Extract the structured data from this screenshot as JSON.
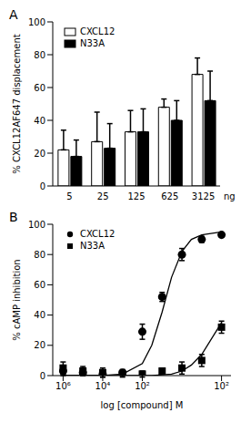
{
  "chart_data": [
    {
      "type": "bar",
      "title": "A",
      "ylabel": "% CXCL12AF647 displacement",
      "xlabel": "ng",
      "categories": [
        "5",
        "25",
        "125",
        "625",
        "3125"
      ],
      "series": [
        {
          "name": "CXCL12",
          "color": "#ffffff",
          "values": [
            22,
            27,
            33,
            48,
            68
          ],
          "errors": [
            12,
            18,
            13,
            5,
            10
          ]
        },
        {
          "name": "N33A",
          "color": "#000000",
          "values": [
            18,
            23,
            33,
            40,
            52
          ],
          "errors": [
            10,
            15,
            14,
            12,
            18
          ]
        }
      ],
      "ylim": [
        0,
        100
      ],
      "yticks": [
        0,
        20,
        40,
        60,
        80,
        100
      ],
      "legend": "top-left",
      "grid": false
    },
    {
      "type": "scatter",
      "title": "B",
      "ylabel": "% cAMP inhibition",
      "xlabel": "log [compound] M",
      "log": "x",
      "series": [
        {
          "name": "CXCL12",
          "color": "#000000",
          "marker": "circle",
          "x": [
            1e-06,
            1e-05,
            0.0001,
            0.001,
            0.01,
            0.1,
            1,
            10,
            100
          ],
          "values": [
            3,
            2,
            1,
            2,
            29,
            52,
            80,
            90,
            93
          ],
          "errors": [
            3,
            2,
            2,
            2,
            5,
            3,
            4,
            2,
            1
          ],
          "fit": {
            "x": [
              1e-06,
              0.0001,
              0.001,
              0.01,
              0.03,
              0.1,
              0.3,
              1,
              3,
              10,
              100
            ],
            "values": [
              0,
              0,
              1,
              8,
              20,
              42,
              65,
              82,
              90,
              93,
              95
            ]
          }
        },
        {
          "name": "N33A",
          "color": "#000000",
          "marker": "square",
          "x": [
            1e-06,
            1e-05,
            0.0001,
            0.001,
            0.01,
            0.1,
            1,
            10,
            100
          ],
          "values": [
            5,
            3,
            2,
            1,
            1,
            3,
            5,
            10,
            32
          ],
          "errors": [
            4,
            3,
            3,
            2,
            2,
            2,
            4,
            4,
            4
          ],
          "fit": {
            "x": [
              1e-06,
              0.0001,
              0.001,
              0.01,
              0.03,
              0.1,
              0.3,
              1,
              3,
              10,
              100
            ],
            "values": [
              0,
              0,
              0,
              0,
              0,
              0.5,
              1,
              3,
              7,
              14,
              35
            ]
          }
        }
      ],
      "xlim": [
        3e-07,
        300
      ],
      "xticks": [
        {
          "value": 1e-06,
          "label": "10⁶"
        },
        {
          "value": 0.0001,
          "label": "10⁴"
        },
        {
          "value": 0.01,
          "label": "10²"
        },
        {
          "value": 100,
          "label": "10²"
        }
      ],
      "ylim": [
        0,
        100
      ],
      "yticks": [
        0,
        20,
        40,
        60,
        80,
        100
      ],
      "legend": "top-left",
      "grid": false
    }
  ]
}
